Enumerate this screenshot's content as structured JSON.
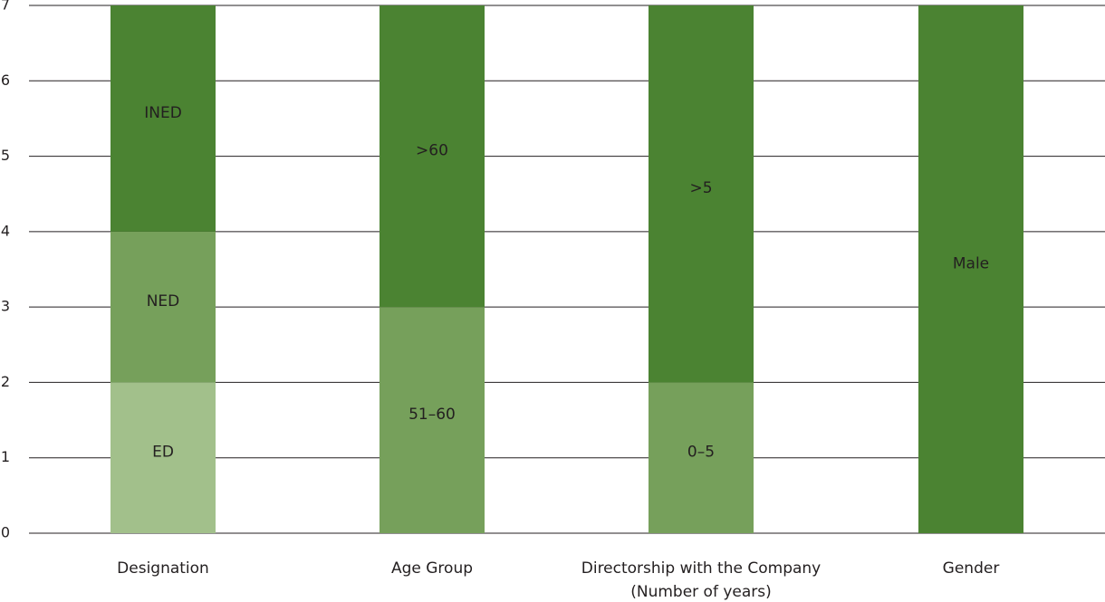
{
  "chart_data": {
    "type": "bar",
    "stacked": true,
    "title": "",
    "xlabel": "",
    "ylabel": "",
    "ylim": [
      0,
      7
    ],
    "yticks": [
      0,
      1,
      2,
      3,
      4,
      5,
      6,
      7
    ],
    "grid": true,
    "legend": "none",
    "colors": {
      "dark": "#4b8332",
      "medium": "#76a05b",
      "light": "#a2c08b"
    },
    "categories": [
      {
        "lines": [
          "Designation"
        ],
        "segments": [
          {
            "label": "ED",
            "value": 2,
            "color": "#a2c08b"
          },
          {
            "label": "NED",
            "value": 2,
            "color": "#76a05b"
          },
          {
            "label": "INED",
            "value": 3,
            "color": "#4b8332"
          }
        ]
      },
      {
        "lines": [
          "Age Group"
        ],
        "segments": [
          {
            "label": "51–60",
            "value": 3,
            "color": "#76a05b"
          },
          {
            "label": ">60",
            "value": 4,
            "color": "#4b8332"
          }
        ]
      },
      {
        "lines": [
          "Directorship with the Company",
          "(Number of years)"
        ],
        "segments": [
          {
            "label": "0–5",
            "value": 2,
            "color": "#76a05b"
          },
          {
            "label": ">5",
            "value": 5,
            "color": "#4b8332"
          }
        ]
      },
      {
        "lines": [
          "Gender"
        ],
        "segments": [
          {
            "label": "Male",
            "value": 7,
            "color": "#4b8332"
          }
        ]
      }
    ]
  }
}
